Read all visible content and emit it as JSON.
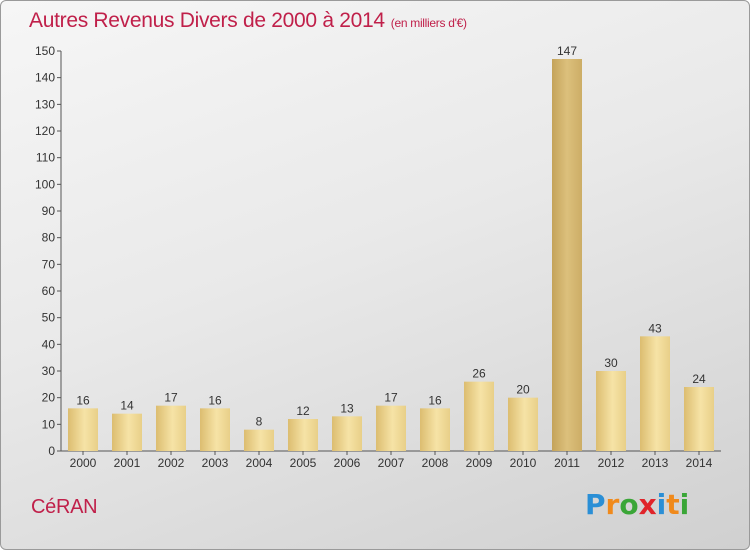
{
  "title": "Autres Revenus Divers de 2000 à 2014",
  "subtitle": "(en milliers d'€)",
  "commune": "CéRAN",
  "logo": {
    "letters": [
      "P",
      "r",
      "o",
      "x",
      "i",
      "t",
      "i"
    ],
    "colors": [
      "#2a8fd6",
      "#f08a1c",
      "#3aa637",
      "#e0242a",
      "#2a8fd6",
      "#f08a1c",
      "#3aa637"
    ]
  },
  "colors": {
    "title": "#c0204a",
    "bar_light": "#f6e3a6",
    "bar_dark": "#dcbd70",
    "bar_highlight_dark": "#c4a35a"
  },
  "chart_data": {
    "type": "bar",
    "categories": [
      "2000",
      "2001",
      "2002",
      "2003",
      "2004",
      "2005",
      "2006",
      "2007",
      "2008",
      "2009",
      "2010",
      "2011",
      "2012",
      "2013",
      "2014"
    ],
    "values": [
      16,
      14,
      17,
      16,
      8,
      12,
      13,
      17,
      16,
      26,
      20,
      147,
      30,
      43,
      24
    ],
    "ylim": [
      0,
      150
    ],
    "yticks": [
      0,
      10,
      20,
      30,
      40,
      50,
      60,
      70,
      80,
      90,
      100,
      110,
      120,
      130,
      140,
      150
    ],
    "grid": false,
    "highlight_index": 11
  }
}
